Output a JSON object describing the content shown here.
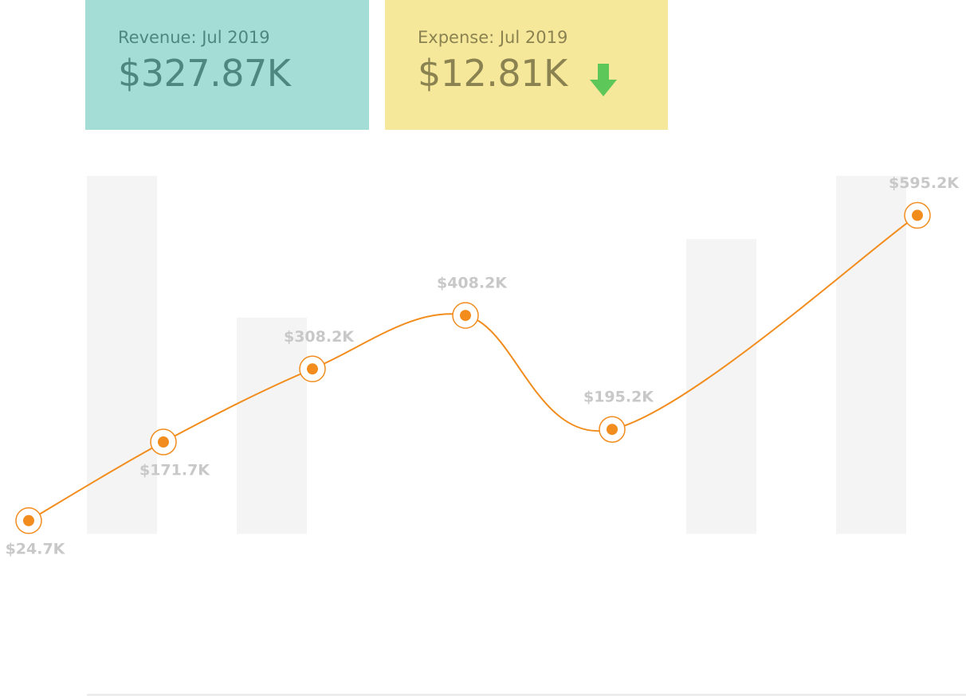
{
  "cards": [
    {
      "label": "Revenue: Jul 2019",
      "value": "$327.87K"
    },
    {
      "label": "Expense: Jul 2019",
      "value": "$12.81K"
    }
  ],
  "chart_data": {
    "type": "line",
    "ylim": [
      -300000,
      700000
    ],
    "series": [
      {
        "type": "bar",
        "color": "#f4f4f4",
        "values": [
          669000,
          404000,
          null,
          null,
          551000,
          669000
        ]
      },
      {
        "type": "line",
        "color": "#f28c1d",
        "values": [
          24700,
          171700,
          308200,
          408200,
          195200,
          595200
        ],
        "value_labels": [
          "$24.7K",
          "$171.7K",
          "$308.2K",
          "$408.2K",
          "$195.2K",
          "$595.2K"
        ]
      }
    ]
  }
}
